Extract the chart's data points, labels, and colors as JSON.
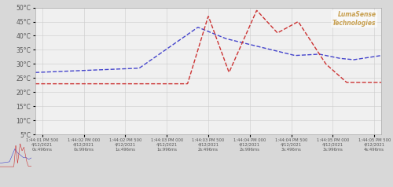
{
  "background_color": "#e8e8e8",
  "plot_bg_color": "#f5f5f5",
  "grid_color": "#cccccc",
  "ylim": [
    5,
    50
  ],
  "yticks": [
    5,
    10,
    15,
    20,
    25,
    30,
    35,
    40,
    45,
    50
  ],
  "ylabel_color": "#666666",
  "x_labels": [
    "1:44:01 PM 500\n4/12/2021\n0s:496ms",
    "1:44:02 PM 000\n4/12/2021\n0s:996ms",
    "1:44:02 PM 500\n4/12/2021\n1s:496ms",
    "1:44:03 PM 000\n4/12/2021\n1s:996ms",
    "1:44:03 PM 500\n4/12/2021\n2s:496ms",
    "1:44:04 PM 000\n4/12/2021\n2s:996ms",
    "1:44:04 PM 500\n4/12/2021\n3s:496ms",
    "1:44:05 PM 000\n4/12/2021\n3s:996ms",
    "1:44:05 PM 500\n4/12/2021\n4s:496ms"
  ],
  "blue_color": "#4444cc",
  "red_color": "#cc3333",
  "logo_text": "LumaSense\nTechnologies",
  "logo_color": "#c8a050"
}
